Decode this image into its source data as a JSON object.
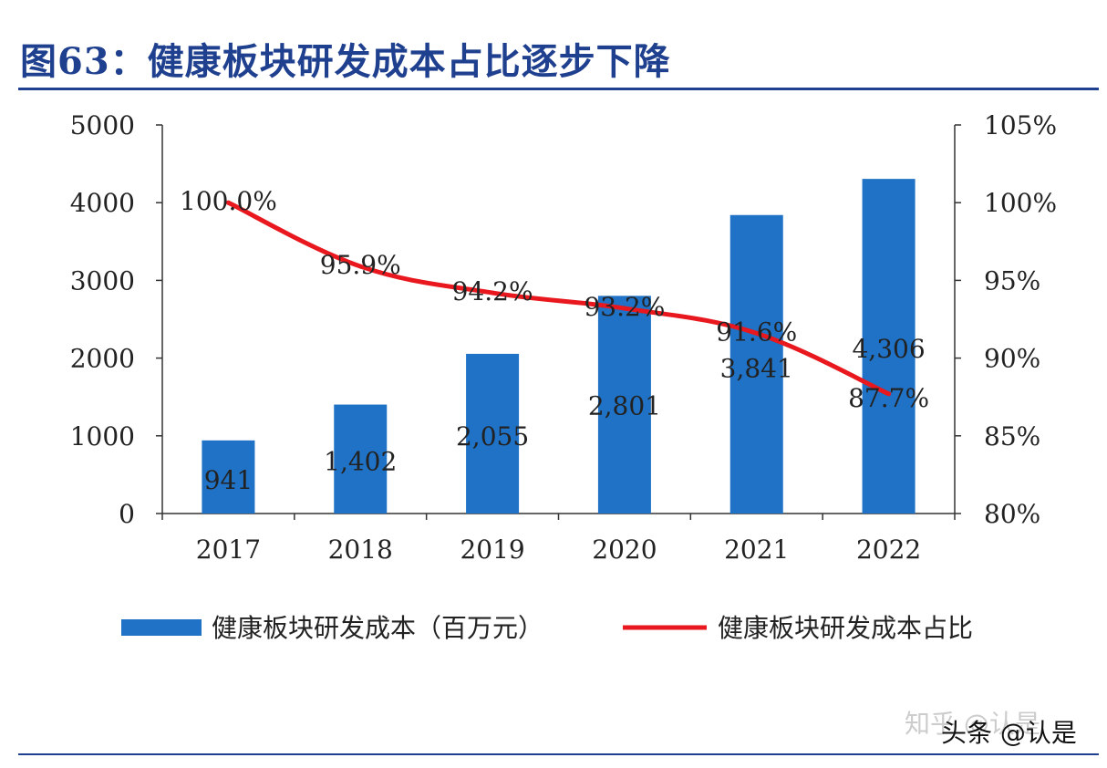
{
  "title": "图63：健康板块研发成本占比逐步下降",
  "chart_data": {
    "type": "bar",
    "categories": [
      "2017",
      "2018",
      "2019",
      "2020",
      "2021",
      "2022"
    ],
    "series": [
      {
        "name": "健康板块研发成本（百万元）",
        "type": "bar",
        "axis": "left",
        "values": [
          941,
          1402,
          2055,
          2801,
          3841,
          4306
        ],
        "labels": [
          "941",
          "1,402",
          "2,055",
          "2,801",
          "3,841",
          "4,306"
        ],
        "color": "#1f72c5"
      },
      {
        "name": "健康板块研发成本占比",
        "type": "line",
        "axis": "right",
        "values": [
          100.0,
          95.9,
          94.2,
          93.2,
          91.6,
          87.7
        ],
        "labels": [
          "100.0%",
          "95.9%",
          "94.2%",
          "93.2%",
          "91.6%",
          "87.7%"
        ],
        "color": "#e8181e"
      }
    ],
    "y_left": {
      "range": [
        0,
        5000
      ],
      "ticks": [
        "0",
        "1000",
        "2000",
        "3000",
        "4000",
        "5000"
      ]
    },
    "y_right": {
      "range": [
        80,
        105
      ],
      "ticks": [
        "80%",
        "85%",
        "90%",
        "95%",
        "100%",
        "105%"
      ]
    },
    "legend": {
      "position": "bottom",
      "entries": [
        "健康板块研发成本（百万元）",
        "健康板块研发成本占比"
      ]
    },
    "grid": false
  },
  "watermark": {
    "line1": "知乎 @认是",
    "line2": "头条 @认是"
  }
}
